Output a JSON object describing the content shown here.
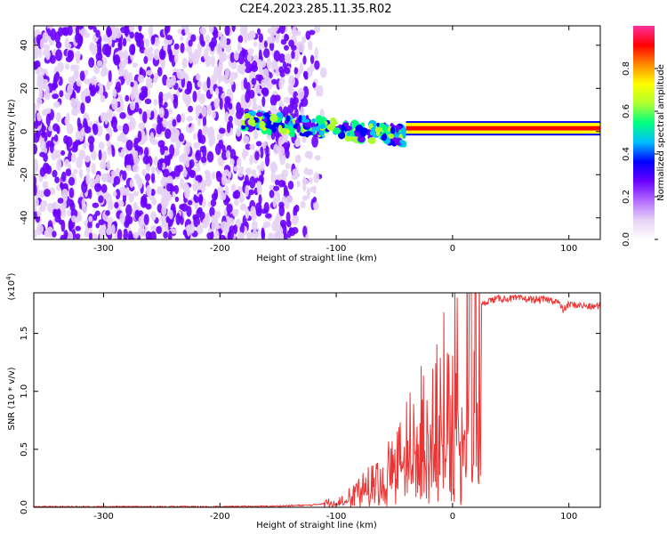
{
  "title": "C2E4.2023.285.11.35.R02",
  "colors": {
    "axis": "#000000",
    "snr_line": "#ee3333",
    "colormap": [
      "#ffffff",
      "#e6d2f5",
      "#b36bff",
      "#6a00ff",
      "#0000ff",
      "#00bfff",
      "#00ff7f",
      "#adff2f",
      "#ffff00",
      "#ff8c00",
      "#ff0000",
      "#ff2fa0"
    ]
  },
  "chart_data": [
    {
      "type": "heatmap",
      "xlabel": "Height of straight line (km)",
      "ylabel": "Frequency (Hz)",
      "xlim": [
        -360,
        127
      ],
      "ylim": [
        -50,
        49
      ],
      "xticks": [
        -300,
        -200,
        -100,
        0,
        100
      ],
      "yticks": [
        -40,
        -20,
        0,
        20,
        40
      ],
      "colorbar": {
        "label": "Normalized spectral amplitude",
        "range": [
          0,
          1
        ],
        "ticks": [
          0.0,
          0.2,
          0.4,
          0.6,
          0.8
        ]
      },
      "regions": [
        {
          "x_range": [
            -360,
            -110
          ],
          "y_range": [
            -50,
            49
          ],
          "amplitude": 0.15,
          "description": "broadband noise"
        },
        {
          "x_range": [
            -180,
            -40
          ],
          "y_range": [
            -10,
            12
          ],
          "amplitude": 0.5,
          "description": "emerging signal"
        },
        {
          "x_range": [
            -40,
            127
          ],
          "y_range": [
            -1,
            4
          ],
          "amplitude": 0.9,
          "description": "carrier line"
        }
      ]
    },
    {
      "type": "line",
      "xlabel": "Height of straight line (km)",
      "ylabel": "SNR (10 * v/v)",
      "y_multiplier_label": "(x10",
      "y_multiplier_exp": "4",
      "xlim": [
        -360,
        127
      ],
      "ylim": [
        0,
        1.85
      ],
      "xticks": [
        -300,
        -200,
        -100,
        0,
        100
      ],
      "yticks": [
        0.0,
        0.5,
        1.0,
        1.5
      ],
      "ytick_labels": [
        "0.0",
        "0.5",
        "1.0",
        "1.5"
      ],
      "xtick_labels": [
        "-300",
        "-200",
        "-100",
        "0",
        "100"
      ],
      "series": [
        {
          "color": "#ee3333",
          "x": [
            -360,
            -300,
            -200,
            -150,
            -120,
            -100,
            -90,
            -80,
            -70,
            -60,
            -50,
            -40,
            -30,
            -20,
            -10,
            0,
            10,
            20,
            30,
            40,
            50,
            60,
            70,
            80,
            90,
            95,
            100,
            110,
            120,
            127
          ],
          "y": [
            0.005,
            0.005,
            0.005,
            0.01,
            0.02,
            0.05,
            0.1,
            0.18,
            0.25,
            0.32,
            0.45,
            0.6,
            0.75,
            0.9,
            1.05,
            1.2,
            1.5,
            1.7,
            1.78,
            1.8,
            1.8,
            1.8,
            1.79,
            1.79,
            1.78,
            1.7,
            1.75,
            1.74,
            1.73,
            1.74
          ]
        }
      ]
    }
  ]
}
